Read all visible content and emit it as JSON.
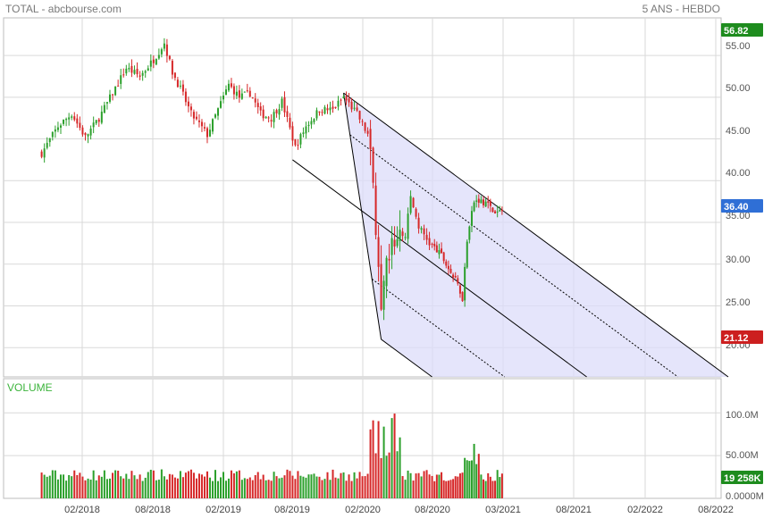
{
  "header": {
    "title": "TOTAL - abcbourse.com",
    "period": "5 ANS - HEBDO"
  },
  "colors": {
    "up": "#2ca02c",
    "down": "#d62728",
    "grid": "#d9d9d9",
    "channel_fill": "#dcdcfa",
    "line": "#000000",
    "flag_high": "#1e8c1e",
    "flag_last": "#2f6fd6",
    "flag_low": "#cc1f1f"
  },
  "price_axis": {
    "ticks": [
      "55.00",
      "50.00",
      "45.00",
      "40.00",
      "35.00",
      "30.00",
      "25.00",
      "20.00"
    ]
  },
  "volume_panel": {
    "title": "VOLUME",
    "ticks": [
      "100.0M",
      "50.00M",
      "0.0000M"
    ]
  },
  "date_axis": {
    "ticks": [
      "02/2018",
      "08/2018",
      "02/2019",
      "08/2019",
      "02/2020",
      "08/2020",
      "03/2021",
      "08/2021",
      "02/2022",
      "08/2022"
    ]
  },
  "flags": {
    "high": "56.82",
    "last": "36.40",
    "low": "21.12",
    "volume_last": "19 258K"
  },
  "chart_data": {
    "type": "candlestick",
    "title": "TOTAL - abcbourse.com",
    "timeframe": "5 ANS - HEBDO",
    "interval": "weekly",
    "price_range": [
      16.5,
      59.5
    ],
    "volume_range": [
      0,
      140
    ],
    "volume_unit": "M",
    "grid": true,
    "annotations": {
      "price_high": 56.82,
      "price_last": 36.4,
      "price_low": 21.12,
      "volume_last": "19 258K"
    },
    "close_path": [
      [
        "2017-10-20",
        43.3
      ],
      [
        "2017-12-01",
        46.5
      ],
      [
        "2018-01-05",
        48.0
      ],
      [
        "2018-02-09",
        45.2
      ],
      [
        "2018-03-16",
        47.5
      ],
      [
        "2018-04-20",
        50.5
      ],
      [
        "2018-05-25",
        53.5
      ],
      [
        "2018-06-29",
        52.5
      ],
      [
        "2018-08-03",
        54.5
      ],
      [
        "2018-08-31",
        56.5
      ],
      [
        "2018-09-21",
        53.0
      ],
      [
        "2018-10-12",
        51.0
      ],
      [
        "2018-11-09",
        48.0
      ],
      [
        "2018-12-21",
        45.5
      ],
      [
        "2019-01-18",
        48.5
      ],
      [
        "2019-02-15",
        51.5
      ],
      [
        "2019-03-15",
        50.0
      ],
      [
        "2019-04-12",
        50.5
      ],
      [
        "2019-05-10",
        48.0
      ],
      [
        "2019-06-07",
        47.5
      ],
      [
        "2019-07-05",
        49.5
      ],
      [
        "2019-08-09",
        44.0
      ],
      [
        "2019-09-06",
        46.5
      ],
      [
        "2019-10-11",
        48.5
      ],
      [
        "2019-11-15",
        48.5
      ],
      [
        "2019-12-13",
        50.0
      ],
      [
        "2020-01-17",
        48.0
      ],
      [
        "2020-02-14",
        45.5
      ],
      [
        "2020-02-28",
        40.0
      ],
      [
        "2020-03-13",
        29.0
      ],
      [
        "2020-03-20",
        23.5
      ],
      [
        "2020-04-03",
        30.0
      ],
      [
        "2020-04-24",
        33.0
      ],
      [
        "2020-05-22",
        33.5
      ],
      [
        "2020-06-05",
        38.0
      ],
      [
        "2020-06-26",
        34.5
      ],
      [
        "2020-07-24",
        32.5
      ],
      [
        "2020-08-28",
        31.0
      ],
      [
        "2020-09-25",
        29.0
      ],
      [
        "2020-10-16",
        27.5
      ],
      [
        "2020-10-30",
        26.0
      ],
      [
        "2020-11-13",
        33.0
      ],
      [
        "2020-12-04",
        37.5
      ],
      [
        "2021-01-08",
        37.5
      ],
      [
        "2021-02-05",
        36.0
      ],
      [
        "2021-02-26",
        36.4
      ]
    ],
    "channel": {
      "pivot": [
        "2019-12-13",
        50.5
      ],
      "anchor_a": [
        "2019-08-02",
        42.5
      ],
      "anchor_b": [
        "2020-03-20",
        21.0
      ],
      "upper_end": [
        "2022-09-02",
        16.5
      ]
    }
  }
}
